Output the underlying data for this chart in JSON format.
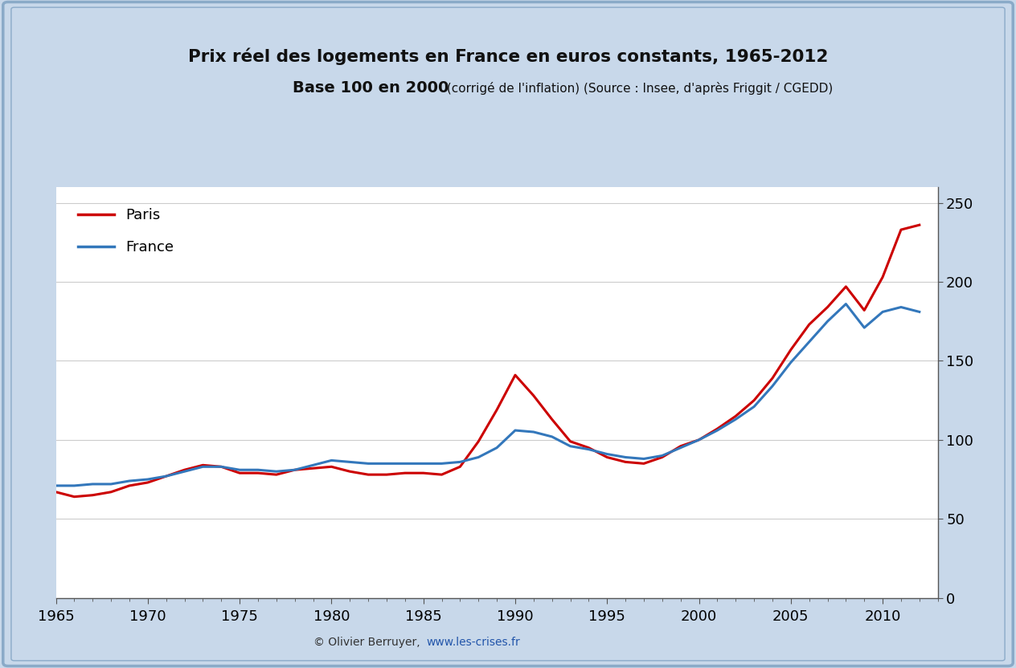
{
  "title_line1": "Prix réel des logements en France en euros constants, 1965-2012",
  "title_line2_bold": "Base 100 en 2000",
  "title_line2_small": " (corrigé de l'inflation) (Source : Insee, d'après Friggit / CGEDD)",
  "copyright": "© Olivier Berruyer,  www.les-crises.fr",
  "copyright_url": "www.les-crises.fr",
  "xlim": [
    1965,
    2013
  ],
  "ylim": [
    0,
    260
  ],
  "yticks": [
    0,
    50,
    100,
    150,
    200,
    250
  ],
  "xticks": [
    1965,
    1970,
    1975,
    1980,
    1985,
    1990,
    1995,
    2000,
    2005,
    2010
  ],
  "color_paris": "#cc0000",
  "color_france": "#3377bb",
  "background_outer": "#c8d8ea",
  "background_inner": "#ffffff",
  "border_color": "#8aaac8",
  "legend_paris": "Paris",
  "legend_france": "France",
  "grid_color": "#cccccc",
  "paris_data": {
    "years": [
      1965,
      1966,
      1967,
      1968,
      1969,
      1970,
      1971,
      1972,
      1973,
      1974,
      1975,
      1976,
      1977,
      1978,
      1979,
      1980,
      1981,
      1982,
      1983,
      1984,
      1985,
      1986,
      1987,
      1988,
      1989,
      1990,
      1991,
      1992,
      1993,
      1994,
      1995,
      1996,
      1997,
      1998,
      1999,
      2000,
      2001,
      2002,
      2003,
      2004,
      2005,
      2006,
      2007,
      2008,
      2009,
      2010,
      2011,
      2012
    ],
    "values": [
      67,
      64,
      65,
      67,
      71,
      73,
      77,
      81,
      84,
      83,
      79,
      79,
      78,
      81,
      82,
      83,
      80,
      78,
      78,
      79,
      79,
      78,
      83,
      99,
      119,
      141,
      128,
      113,
      99,
      95,
      89,
      86,
      85,
      89,
      96,
      100,
      107,
      115,
      125,
      139,
      157,
      173,
      184,
      197,
      182,
      203,
      233,
      236
    ]
  },
  "france_data": {
    "years": [
      1965,
      1966,
      1967,
      1968,
      1969,
      1970,
      1971,
      1972,
      1973,
      1974,
      1975,
      1976,
      1977,
      1978,
      1979,
      1980,
      1981,
      1982,
      1983,
      1984,
      1985,
      1986,
      1987,
      1988,
      1989,
      1990,
      1991,
      1992,
      1993,
      1994,
      1995,
      1996,
      1997,
      1998,
      1999,
      2000,
      2001,
      2002,
      2003,
      2004,
      2005,
      2006,
      2007,
      2008,
      2009,
      2010,
      2011,
      2012
    ],
    "values": [
      71,
      71,
      72,
      72,
      74,
      75,
      77,
      80,
      83,
      83,
      81,
      81,
      80,
      81,
      84,
      87,
      86,
      85,
      85,
      85,
      85,
      85,
      86,
      89,
      95,
      106,
      105,
      102,
      96,
      94,
      91,
      89,
      88,
      90,
      95,
      100,
      106,
      113,
      121,
      134,
      149,
      162,
      175,
      186,
      171,
      181,
      184,
      181
    ]
  }
}
